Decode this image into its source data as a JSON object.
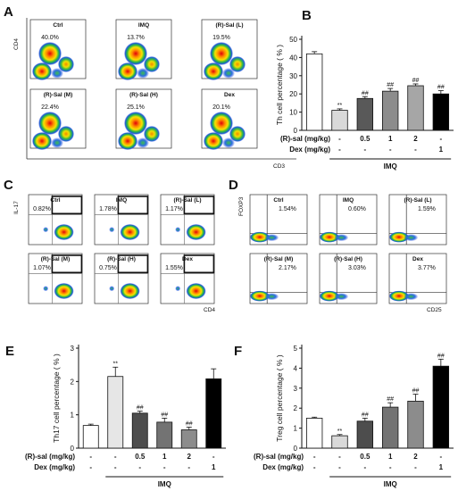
{
  "panels": {
    "A": {
      "letter": "A",
      "y_axis": "CD4",
      "x_axis": "CD3",
      "plots": [
        {
          "name": "Ctrl",
          "pct": "40.0%"
        },
        {
          "name": "IMQ",
          "pct": "13.7%"
        },
        {
          "name": "(R)-Sal (L)",
          "pct": "19.5%"
        },
        {
          "name": "(R)-Sal (M)",
          "pct": "22.4%"
        },
        {
          "name": "(R)-Sal (H)",
          "pct": "25.1%"
        },
        {
          "name": "Dex",
          "pct": "20.1%"
        }
      ]
    },
    "C": {
      "letter": "C",
      "y_axis": "IL-17",
      "x_axis": "CD4",
      "plots": [
        {
          "name": "Ctrl",
          "pct": "0.82%"
        },
        {
          "name": "IMQ",
          "pct": "1.78%"
        },
        {
          "name": "(R)-Sal (L)",
          "pct": "1.17%"
        },
        {
          "name": "(R)-Sal (M)",
          "pct": "1.07%"
        },
        {
          "name": "(R)-Sal (H)",
          "pct": "0.75%"
        },
        {
          "name": "Dex",
          "pct": "1.55%"
        }
      ]
    },
    "D": {
      "letter": "D",
      "y_axis": "FOXP3",
      "x_axis": "CD25",
      "plots": [
        {
          "name": "Ctrl",
          "pct": "1.54%"
        },
        {
          "name": "IMQ",
          "pct": "0.60%"
        },
        {
          "name": "(R)-Sal (L)",
          "pct": "1.59%"
        },
        {
          "name": "(R)-Sal (M)",
          "pct": "2.17%"
        },
        {
          "name": "(R)-Sal (H)",
          "pct": "3.03%"
        },
        {
          "name": "Dex",
          "pct": "3.77%"
        }
      ]
    }
  },
  "chart_data": [
    {
      "id": "B",
      "letter": "B",
      "type": "bar",
      "ylabel": "Th cell percentage ( % )",
      "ylim": [
        0,
        50
      ],
      "yticks": [
        "0",
        "10",
        "20",
        "30",
        "40",
        "50"
      ],
      "values": [
        42,
        11,
        17.5,
        21.5,
        24.5,
        20
      ],
      "errors": [
        1.2,
        0.8,
        1.0,
        1.5,
        1.0,
        1.8
      ],
      "fills": [
        "#ffffff",
        "#d9d9d9",
        "#595959",
        "#8c8c8c",
        "#a6a6a6",
        "#000000"
      ],
      "significance": [
        "",
        "**",
        "##",
        "##",
        "##",
        "##"
      ],
      "rows": [
        {
          "label": "(R)-sal (mg/kg)",
          "cells": [
            "-",
            "-",
            "0.5",
            "1",
            "2",
            "-"
          ]
        },
        {
          "label": "Dex (mg/kg)",
          "cells": [
            "-",
            "-",
            "-",
            "-",
            "-",
            "1"
          ]
        }
      ],
      "group_label": "IMQ"
    },
    {
      "id": "E",
      "letter": "E",
      "type": "bar",
      "ylabel": "Th17 cell percentage ( % )",
      "ylim": [
        0,
        3
      ],
      "yticks": [
        "0",
        "1",
        "2",
        "3"
      ],
      "values": [
        0.68,
        2.15,
        1.05,
        0.78,
        0.55,
        2.08
      ],
      "errors": [
        0.04,
        0.28,
        0.06,
        0.12,
        0.08,
        0.3
      ],
      "fills": [
        "#ffffff",
        "#e6e6e6",
        "#4d4d4d",
        "#737373",
        "#8c8c8c",
        "#000000"
      ],
      "significance": [
        "",
        "**",
        "##",
        "##",
        "##",
        ""
      ],
      "rows": [
        {
          "label": "(R)-sal (mg/kg)",
          "cells": [
            "-",
            "-",
            "0.5",
            "1",
            "2",
            "-"
          ]
        },
        {
          "label": "Dex (mg/kg)",
          "cells": [
            "-",
            "-",
            "-",
            "-",
            "-",
            "1"
          ]
        }
      ],
      "group_label": "IMQ"
    },
    {
      "id": "F",
      "letter": "F",
      "type": "bar",
      "ylabel": "Treg cell percentage ( % )",
      "ylim": [
        0,
        5
      ],
      "yticks": [
        "0",
        "1",
        "2",
        "3",
        "4",
        "5"
      ],
      "values": [
        1.5,
        0.62,
        1.35,
        2.05,
        2.35,
        4.1
      ],
      "errors": [
        0.05,
        0.06,
        0.15,
        0.22,
        0.35,
        0.35
      ],
      "fills": [
        "#ffffff",
        "#d9d9d9",
        "#4d4d4d",
        "#737373",
        "#8c8c8c",
        "#000000"
      ],
      "significance": [
        "",
        "**",
        "##",
        "##",
        "##",
        "##"
      ],
      "rows": [
        {
          "label": "(R)-sal (mg/kg)",
          "cells": [
            "-",
            "-",
            "0.5",
            "1",
            "2",
            "-"
          ]
        },
        {
          "label": "Dex (mg/kg)",
          "cells": [
            "-",
            "-",
            "-",
            "-",
            "-",
            "1"
          ]
        }
      ],
      "group_label": "IMQ"
    }
  ]
}
